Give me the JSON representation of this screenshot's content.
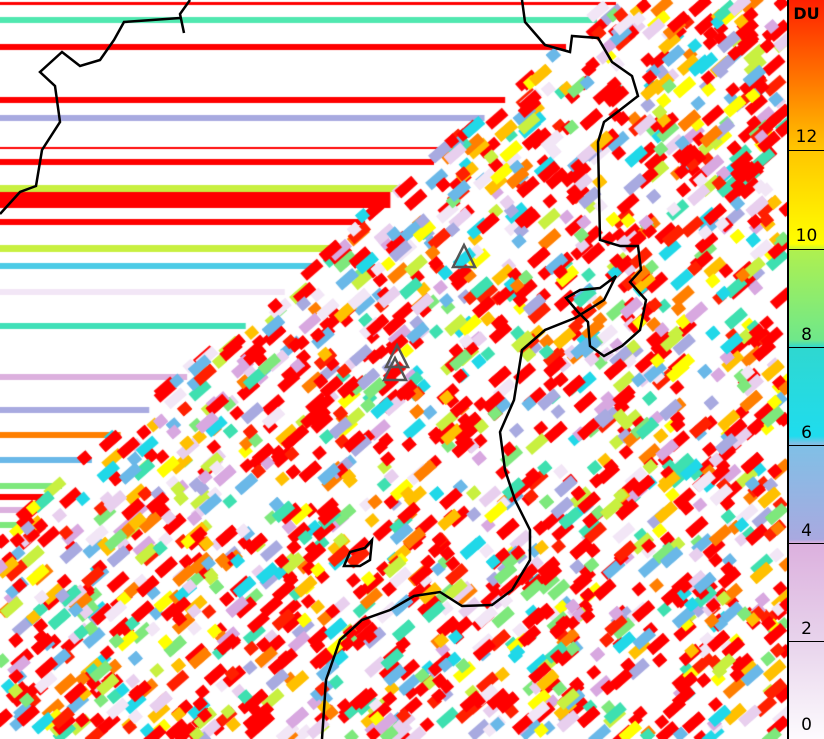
{
  "colorbar": {
    "unit": "DU",
    "ticks": [
      "0",
      "2",
      "4",
      "6",
      "8",
      "10",
      "12"
    ],
    "range": [
      0,
      15
    ],
    "colors": [
      "#ffffff",
      "#e6cbe9",
      "#d9a3dc",
      "#9fb1e3",
      "#1fdcee",
      "#8ced6c",
      "#ffff00",
      "#ffa500",
      "#ff0000"
    ]
  },
  "map": {
    "coastline_color": "#000000",
    "volcano_markers": 3,
    "dominant_color": "#ff0000"
  }
}
